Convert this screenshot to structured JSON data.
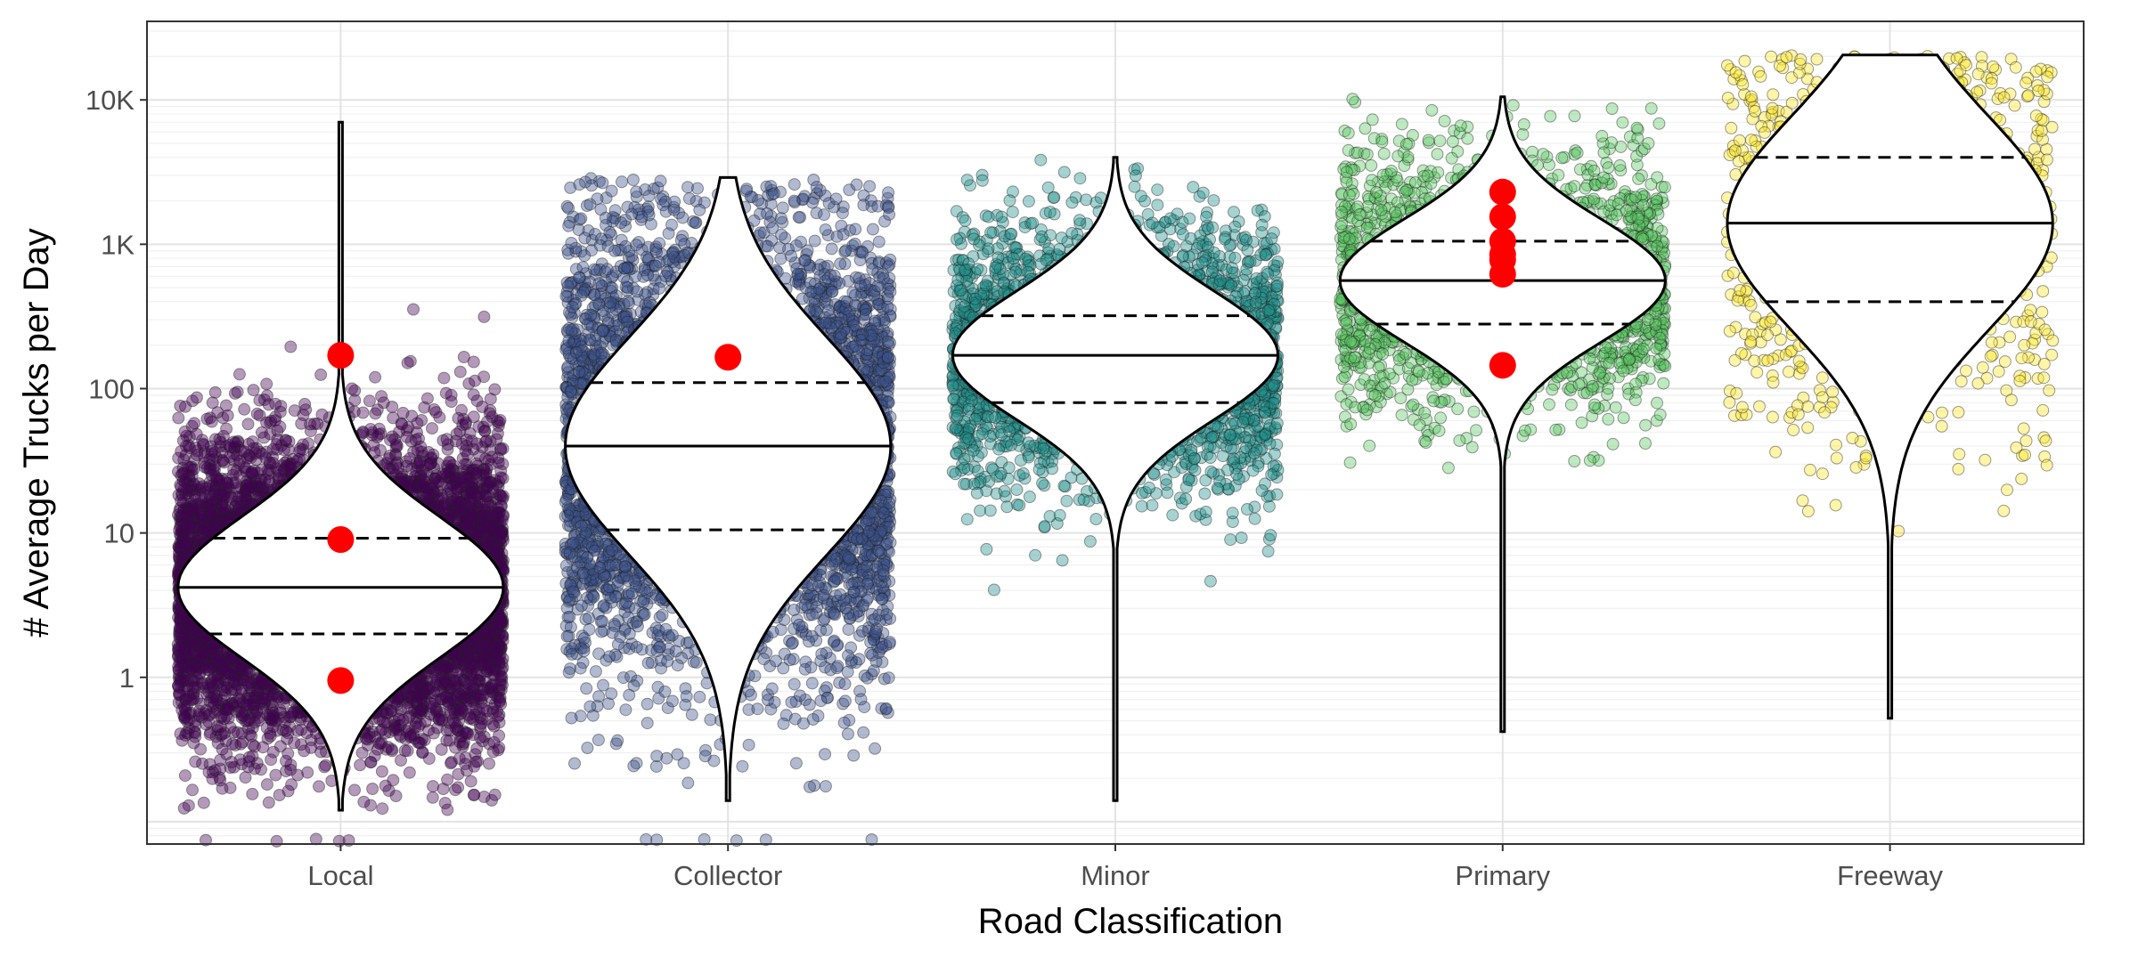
{
  "chart_data": {
    "type": "violin",
    "title": "",
    "xlabel": "Road Classification",
    "ylabel": "# Average Trucks per Day",
    "y_scale": "log10",
    "ylim": [
      0.07,
      35000
    ],
    "grid": true,
    "legend": "none",
    "categories": [
      "Local",
      "Collector",
      "Minor",
      "Primary",
      "Freeway"
    ],
    "y_ticks": [
      {
        "value": 1,
        "label": "1"
      },
      {
        "value": 10,
        "label": "10"
      },
      {
        "value": 100,
        "label": "100"
      },
      {
        "value": 1000,
        "label": "1K"
      },
      {
        "value": 10000,
        "label": "10K"
      }
    ],
    "series": [
      {
        "category": "Local",
        "color": "#440154",
        "n_points": 9000,
        "min": 0.12,
        "max": 7000,
        "quartiles": [
          2.0,
          4.2,
          9.2
        ],
        "highlight_points": [
          170,
          9,
          0.95
        ]
      },
      {
        "category": "Collector",
        "color": "#3b528b",
        "n_points": 6000,
        "min": 0.14,
        "max": 2900,
        "quartiles": [
          10.5,
          40,
          110
        ],
        "highlight_points": [
          165
        ]
      },
      {
        "category": "Minor",
        "color": "#21908c",
        "n_points": 3500,
        "min": 0.14,
        "max": 4000,
        "quartiles": [
          80,
          170,
          320
        ],
        "highlight_points": []
      },
      {
        "category": "Primary",
        "color": "#5dc863",
        "n_points": 2500,
        "min": 0.42,
        "max": 10500,
        "quartiles": [
          280,
          560,
          1050
        ],
        "highlight_points": [
          2300,
          1550,
          1050,
          850,
          780,
          620,
          145
        ]
      },
      {
        "category": "Freeway",
        "color": "#fde725",
        "n_points": 1000,
        "min": 0.52,
        "max": 20500,
        "quartiles": [
          400,
          1400,
          4000
        ],
        "highlight_points": []
      }
    ],
    "highlight_color": "#ff0000"
  }
}
